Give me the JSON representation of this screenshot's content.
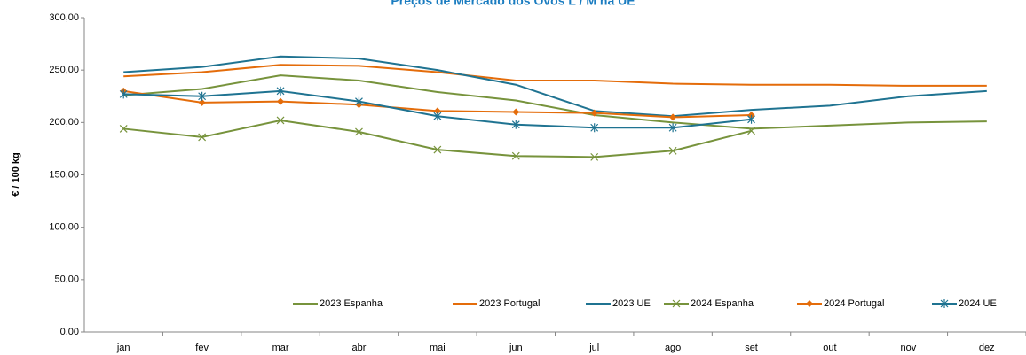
{
  "chart_data": {
    "type": "line",
    "title": "Preços de Mercado dos Ovos L / M na UE",
    "y_label": "€ / 100 kg",
    "categories": [
      "jan",
      "fev",
      "mar",
      "abr",
      "mai",
      "jun",
      "jul",
      "ago",
      "set",
      "out",
      "nov",
      "dez"
    ],
    "series": [
      {
        "name": "2023 Espanha",
        "color": "#77933c",
        "marker": "none",
        "values": [
          226,
          232,
          245,
          240,
          229,
          221,
          207,
          200,
          194,
          197,
          200,
          201
        ]
      },
      {
        "name": "2023 Portugal",
        "color": "#e46c0a",
        "marker": "none",
        "values": [
          244,
          248,
          255,
          254,
          248,
          240,
          240,
          237,
          236,
          236,
          235,
          235
        ]
      },
      {
        "name": "2023 UE",
        "color": "#1f7391",
        "marker": "none",
        "values": [
          248,
          253,
          263,
          261,
          250,
          236,
          211,
          206,
          212,
          216,
          225,
          230
        ]
      },
      {
        "name": "2024 Espanha",
        "color": "#77933c",
        "marker": "x",
        "values": [
          194,
          186,
          202,
          191,
          174,
          168,
          167,
          173,
          192,
          null,
          null,
          null
        ]
      },
      {
        "name": "2024 Portugal",
        "color": "#e46c0a",
        "marker": "diamond",
        "values": [
          230,
          219,
          220,
          217,
          211,
          210,
          209,
          205,
          207,
          null,
          null,
          null
        ]
      },
      {
        "name": "2024 UE",
        "color": "#1f7391",
        "marker": "asterisk",
        "values": [
          227,
          225,
          230,
          220,
          206,
          198,
          195,
          195,
          203,
          null,
          null,
          null
        ]
      }
    ],
    "ylim": [
      0,
      300
    ],
    "yticks": [
      {
        "value": 0,
        "label": "0,00"
      },
      {
        "value": 50,
        "label": "50,00"
      },
      {
        "value": 100,
        "label": "100,00"
      },
      {
        "value": 150,
        "label": "150,00"
      },
      {
        "value": 200,
        "label": "200,00"
      },
      {
        "value": 250,
        "label": "250,00"
      },
      {
        "value": 300,
        "label": "300,00"
      }
    ],
    "grid": false,
    "legend": "bottom-right"
  }
}
